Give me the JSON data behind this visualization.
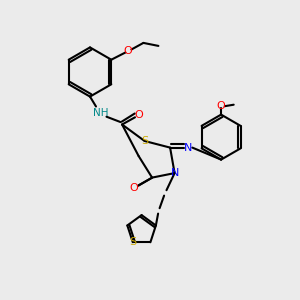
{
  "bg_color": "#ebebeb",
  "bond_color": "#000000",
  "bond_width": 1.5,
  "atom_colors": {
    "N": "#0000ff",
    "O": "#ff0000",
    "S": "#ccaa00",
    "NH": "#008888",
    "C": "#000000"
  },
  "font_size": 7.5
}
